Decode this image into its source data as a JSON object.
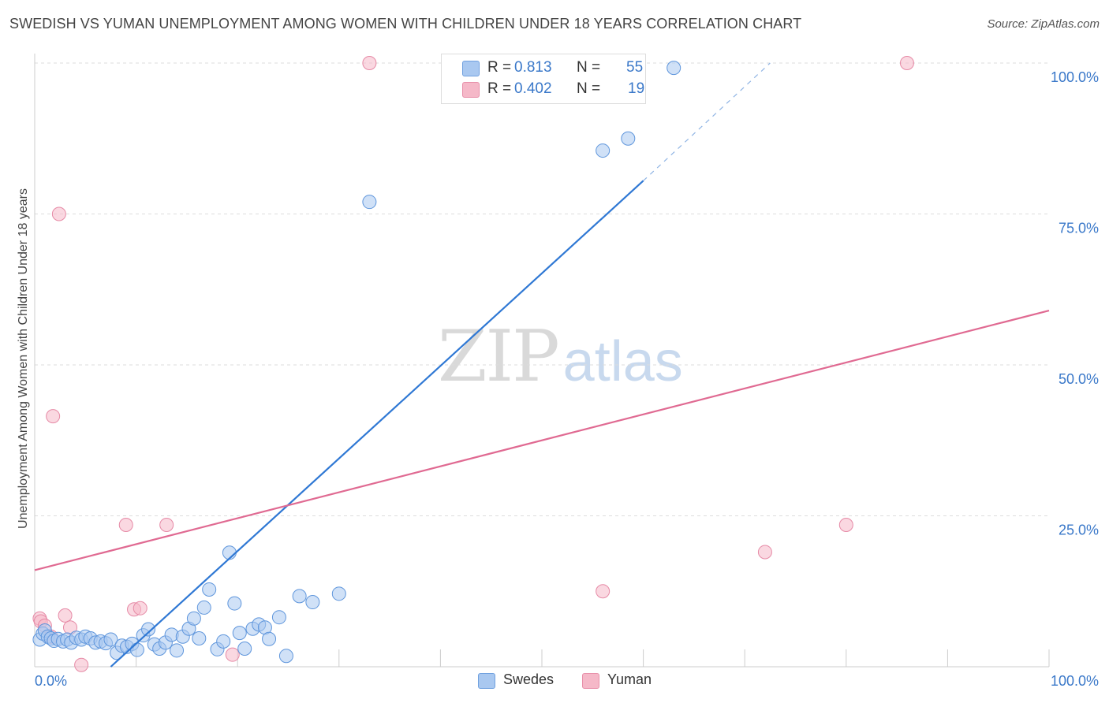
{
  "header": {
    "title": "SWEDISH VS YUMAN UNEMPLOYMENT AMONG WOMEN WITH CHILDREN UNDER 18 YEARS CORRELATION CHART",
    "source": "Source: ZipAtlas.com"
  },
  "watermark": {
    "zip": "ZIP",
    "atlas": "atlas"
  },
  "legend": {
    "r_label": "R =",
    "n_label": "N =",
    "swedes": {
      "name": "Swedes",
      "r": "0.813",
      "n": "55",
      "color": "#a9c8f0",
      "line_color": "#2f78d4"
    },
    "yuman": {
      "name": "Yuman",
      "r": "0.402",
      "n": "19",
      "color": "#f5b8c8",
      "line_color": "#e06a92"
    }
  },
  "chart_data": {
    "type": "scatter",
    "title": "SWEDISH VS YUMAN UNEMPLOYMENT AMONG WOMEN WITH CHILDREN UNDER 18 YEARS CORRELATION CHART",
    "xlabel": "",
    "ylabel": "Unemployment Among Women with Children Under 18 years",
    "xlim": [
      0,
      100
    ],
    "ylim": [
      0,
      100
    ],
    "x_tick_labels": [
      "0.0%",
      "100.0%"
    ],
    "y_ticks": [
      25,
      50,
      75,
      100
    ],
    "y_tick_labels": [
      "25.0%",
      "50.0%",
      "75.0%",
      "100.0%"
    ],
    "grid": true,
    "legend_placement": "top-center and bottom-center",
    "series": [
      {
        "name": "Swedes",
        "points": [
          [
            0.5,
            4.5
          ],
          [
            0.8,
            5.5
          ],
          [
            1.0,
            6.0
          ],
          [
            1.3,
            5.0
          ],
          [
            1.6,
            4.7
          ],
          [
            1.9,
            4.3
          ],
          [
            2.3,
            4.6
          ],
          [
            2.8,
            4.2
          ],
          [
            3.2,
            4.5
          ],
          [
            3.6,
            4.0
          ],
          [
            4.1,
            4.8
          ],
          [
            4.6,
            4.5
          ],
          [
            5.0,
            5.0
          ],
          [
            5.5,
            4.7
          ],
          [
            6.0,
            4.0
          ],
          [
            6.5,
            4.2
          ],
          [
            7.0,
            3.9
          ],
          [
            7.5,
            4.5
          ],
          [
            8.1,
            2.3
          ],
          [
            8.6,
            3.5
          ],
          [
            9.1,
            3.3
          ],
          [
            9.6,
            3.8
          ],
          [
            10.1,
            2.8
          ],
          [
            10.7,
            5.2
          ],
          [
            11.2,
            6.2
          ],
          [
            11.8,
            3.7
          ],
          [
            12.3,
            3.0
          ],
          [
            12.9,
            4.0
          ],
          [
            13.5,
            5.3
          ],
          [
            14.0,
            2.7
          ],
          [
            14.6,
            5.0
          ],
          [
            15.2,
            6.3
          ],
          [
            15.7,
            8.0
          ],
          [
            16.2,
            4.7
          ],
          [
            16.7,
            9.8
          ],
          [
            17.2,
            12.8
          ],
          [
            18.0,
            2.9
          ],
          [
            18.6,
            4.2
          ],
          [
            19.2,
            18.9
          ],
          [
            19.7,
            10.5
          ],
          [
            20.2,
            5.6
          ],
          [
            20.7,
            3.0
          ],
          [
            21.5,
            6.3
          ],
          [
            22.1,
            7.0
          ],
          [
            22.7,
            6.5
          ],
          [
            23.1,
            4.6
          ],
          [
            24.1,
            8.2
          ],
          [
            24.8,
            1.8
          ],
          [
            26.1,
            11.7
          ],
          [
            27.4,
            10.7
          ],
          [
            30.0,
            12.1
          ],
          [
            33.0,
            77.0
          ],
          [
            56.0,
            85.5
          ],
          [
            58.5,
            87.5
          ],
          [
            63.0,
            99.2
          ]
        ],
        "trend_line": {
          "from": [
            7.5,
            0
          ],
          "to": [
            60.0,
            80.5
          ],
          "dashed_to": [
            72.5,
            100
          ]
        }
      },
      {
        "name": "Yuman",
        "points": [
          [
            0.5,
            8.0
          ],
          [
            0.6,
            7.5
          ],
          [
            1.0,
            6.8
          ],
          [
            1.8,
            41.5
          ],
          [
            2.4,
            75.0
          ],
          [
            3.0,
            8.5
          ],
          [
            3.5,
            6.5
          ],
          [
            4.6,
            0.3
          ],
          [
            9.0,
            23.5
          ],
          [
            9.8,
            9.5
          ],
          [
            10.4,
            9.7
          ],
          [
            13.0,
            23.5
          ],
          [
            19.5,
            2.0
          ],
          [
            33.0,
            100.0
          ],
          [
            56.0,
            12.5
          ],
          [
            72.0,
            19.0
          ],
          [
            80.0,
            23.5
          ],
          [
            86.0,
            100.0
          ],
          [
            1.6,
            5.0
          ]
        ],
        "trend_line": {
          "from": [
            0,
            16.0
          ],
          "to": [
            100,
            59.0
          ]
        }
      }
    ]
  }
}
